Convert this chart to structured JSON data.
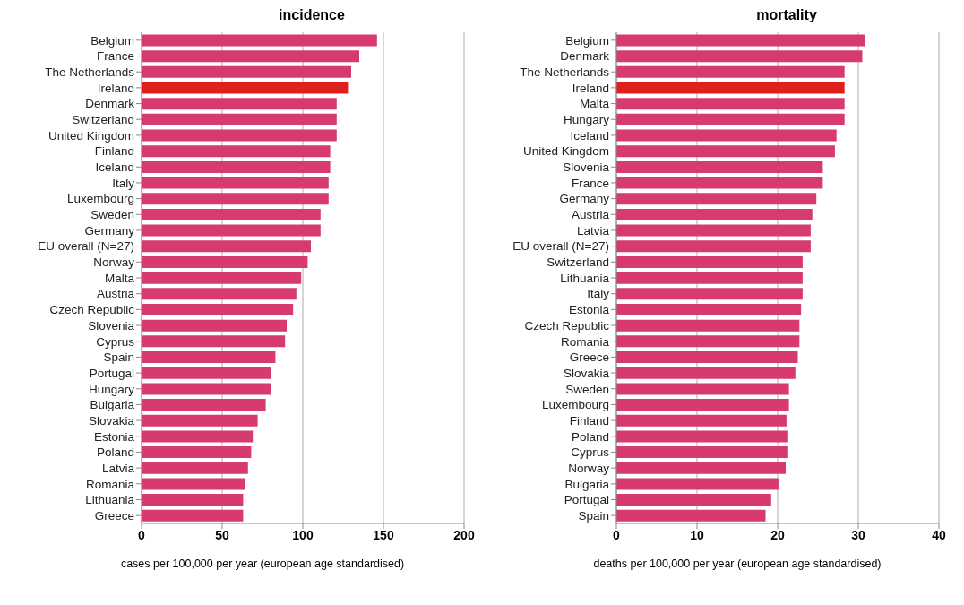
{
  "chart_data": [
    {
      "type": "bar",
      "orientation": "horizontal",
      "title": "incidence",
      "xlabel": "cases per 100,000 per year (european age standardised)",
      "categories": [
        "Belgium",
        "France",
        "The Netherlands",
        "Ireland",
        "Denmark",
        "Switzerland",
        "United Kingdom",
        "Finland",
        "Iceland",
        "Italy",
        "Luxembourg",
        "Sweden",
        "Germany",
        "EU overall (N=27)",
        "Norway",
        "Malta",
        "Austria",
        "Czech Republic",
        "Slovenia",
        "Cyprus",
        "Spain",
        "Portugal",
        "Hungary",
        "Bulgaria",
        "Slovakia",
        "Estonia",
        "Poland",
        "Latvia",
        "Romania",
        "Lithuania",
        "Greece"
      ],
      "values": [
        146,
        135,
        130,
        128,
        121,
        121,
        121,
        117,
        117,
        116,
        116,
        111,
        111,
        105,
        103,
        99,
        96,
        94,
        90,
        89,
        83,
        80,
        80,
        77,
        72,
        69,
        68,
        66,
        64,
        63,
        63
      ],
      "colors": [
        "#d63a6e",
        "#d63a6e",
        "#d63a6e",
        "#e0201f",
        "#d63a6e",
        "#d63a6e",
        "#d63a6e",
        "#d63a6e",
        "#d63a6e",
        "#d63a6e",
        "#d63a6e",
        "#d63a6e",
        "#d63a6e",
        "#d63a6e",
        "#d63a6e",
        "#d63a6e",
        "#d63a6e",
        "#d63a6e",
        "#d63a6e",
        "#d63a6e",
        "#d63a6e",
        "#d63a6e",
        "#d63a6e",
        "#d63a6e",
        "#d63a6e",
        "#d63a6e",
        "#d63a6e",
        "#d63a6e",
        "#d63a6e",
        "#d63a6e",
        "#d63a6e"
      ],
      "xlim": [
        0,
        200
      ],
      "xticks": [
        0,
        50,
        100,
        150,
        200
      ],
      "grid": "x"
    },
    {
      "type": "bar",
      "orientation": "horizontal",
      "title": "mortality",
      "xlabel": "deaths per 100,000 per year (european age standardised)",
      "categories": [
        "Belgium",
        "Denmark",
        "The Netherlands",
        "Ireland",
        "Malta",
        "Hungary",
        "Iceland",
        "United Kingdom",
        "Slovenia",
        "France",
        "Germany",
        "Austria",
        "Latvia",
        "EU overall (N=27)",
        "Switzerland",
        "Lithuania",
        "Italy",
        "Estonia",
        "Czech Republic",
        "Romania",
        "Greece",
        "Slovakia",
        "Sweden",
        "Luxembourg",
        "Finland",
        "Poland",
        "Cyprus",
        "Norway",
        "Bulgaria",
        "Portugal",
        "Spain"
      ],
      "values": [
        30.8,
        30.5,
        28.3,
        28.3,
        28.3,
        28.3,
        27.3,
        27.1,
        25.6,
        25.6,
        24.8,
        24.3,
        24.1,
        24.1,
        23.1,
        23.1,
        23.1,
        22.9,
        22.7,
        22.7,
        22.5,
        22.2,
        21.4,
        21.4,
        21.1,
        21.2,
        21.2,
        21.0,
        20.1,
        19.2,
        18.5
      ],
      "colors": [
        "#d63a6e",
        "#d63a6e",
        "#d63a6e",
        "#e0201f",
        "#d63a6e",
        "#d63a6e",
        "#d63a6e",
        "#d63a6e",
        "#d63a6e",
        "#d63a6e",
        "#d63a6e",
        "#d63a6e",
        "#d63a6e",
        "#d63a6e",
        "#d63a6e",
        "#d63a6e",
        "#d63a6e",
        "#d63a6e",
        "#d63a6e",
        "#d63a6e",
        "#d63a6e",
        "#d63a6e",
        "#d63a6e",
        "#d63a6e",
        "#d63a6e",
        "#d63a6e",
        "#d63a6e",
        "#d63a6e",
        "#d63a6e",
        "#d63a6e",
        "#d63a6e"
      ],
      "xlim": [
        0,
        40
      ],
      "xticks": [
        0,
        10,
        20,
        30,
        40
      ],
      "grid": "x"
    }
  ]
}
